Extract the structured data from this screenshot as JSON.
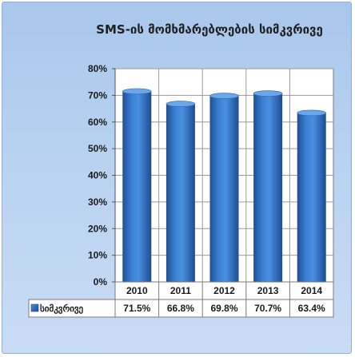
{
  "chart_data": {
    "type": "bar",
    "title": "SMS-ის მომხმარებლების სიმკვრივე",
    "categories": [
      "2010",
      "2011",
      "2012",
      "2013",
      "2014"
    ],
    "series": [
      {
        "name": "სიმკვრივე",
        "values": [
          71.5,
          66.8,
          69.8,
          70.7,
          63.4
        ],
        "color": "#2e6fc0"
      }
    ],
    "data_table_labels": [
      "71.5%",
      "66.8%",
      "69.8%",
      "70.7%",
      "63.4%"
    ],
    "ylim": [
      0,
      80
    ],
    "yticks": [
      "0%",
      "10%",
      "20%",
      "30%",
      "40%",
      "50%",
      "60%",
      "70%",
      "80%"
    ],
    "ytick_values": [
      0,
      10,
      20,
      30,
      40,
      50,
      60,
      70,
      80
    ],
    "grid": true,
    "legend": "data-table-left"
  }
}
